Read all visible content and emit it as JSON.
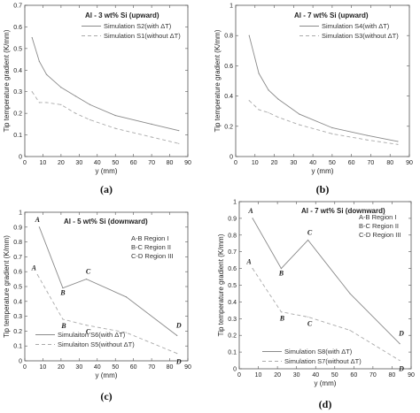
{
  "chart_data": [
    {
      "type": "line",
      "panel_label": "(a)",
      "title": "Al - 3 wt% Si (upward)",
      "xlabel": "y (mm)",
      "ylabel": "Tip temperature gradient (K/mm)",
      "xlim": [
        0,
        90
      ],
      "ylim": [
        0,
        0.7
      ],
      "xticks": [
        "0",
        "10",
        "20",
        "30",
        "40",
        "50",
        "60",
        "70",
        "80",
        "90"
      ],
      "yticks": [
        "0",
        "0.1",
        "0.2",
        "0.3",
        "0.4",
        "0.5",
        "0.6",
        "0.7"
      ],
      "legend_position": "top-right",
      "series": [
        {
          "name": "Simulation S2(with ΔT)",
          "style": "solid",
          "x": [
            4,
            8,
            12,
            20,
            28,
            36,
            50,
            70,
            85
          ],
          "y": [
            0.55,
            0.44,
            0.38,
            0.32,
            0.28,
            0.24,
            0.19,
            0.15,
            0.12
          ]
        },
        {
          "name": "Simulation S1(without ΔT)",
          "style": "dashed",
          "x": [
            4,
            8,
            12,
            20,
            28,
            36,
            50,
            70,
            85
          ],
          "y": [
            0.3,
            0.25,
            0.25,
            0.24,
            0.2,
            0.17,
            0.13,
            0.09,
            0.06
          ]
        }
      ]
    },
    {
      "type": "line",
      "panel_label": "(b)",
      "title": "Al - 7 wt% Si (upward)",
      "xlabel": "y (mm)",
      "ylabel": "Tip temperature gradient (K/mm)",
      "xlim": [
        0,
        90
      ],
      "ylim": [
        0,
        1.0
      ],
      "xticks": [
        "0",
        "10",
        "20",
        "30",
        "40",
        "50",
        "60",
        "70",
        "80",
        "90"
      ],
      "yticks": [
        "0",
        "0.2",
        "0.4",
        "0.6",
        "0.8",
        "1"
      ],
      "legend_position": "top-right",
      "series": [
        {
          "name": "Simulation S4(with ΔT)",
          "style": "solid",
          "x": [
            7,
            12,
            17,
            22,
            33,
            50,
            68,
            84
          ],
          "y": [
            0.8,
            0.55,
            0.44,
            0.38,
            0.28,
            0.19,
            0.14,
            0.1
          ]
        },
        {
          "name": "Simulation S3(without ΔT)",
          "style": "dashed",
          "x": [
            7,
            12,
            17,
            22,
            33,
            50,
            68,
            84
          ],
          "y": [
            0.37,
            0.31,
            0.29,
            0.26,
            0.21,
            0.15,
            0.11,
            0.08
          ]
        }
      ]
    },
    {
      "type": "line",
      "panel_label": "(c)",
      "title": "Al - 5 wt% Si (downward)",
      "xlabel": "y (mm)",
      "ylabel": "Tip temperature gradient (K/mm)",
      "xlim": [
        0,
        90
      ],
      "ylim": [
        0,
        1.0
      ],
      "xticks": [
        "0",
        "10",
        "20",
        "30",
        "40",
        "50",
        "60",
        "70",
        "80",
        "90"
      ],
      "yticks": [
        "0",
        "0.1",
        "0.2",
        "0.3",
        "0.4",
        "0.5",
        "0.6",
        "0.7",
        "0.8",
        "0.9",
        "1"
      ],
      "legend_position": "bottom-left",
      "regions": [
        "A-B   Region I",
        "B-C   Region II",
        "C-D   Region III"
      ],
      "series": [
        {
          "name": "Simulaiton S6(with ΔT)",
          "style": "solid",
          "x": [
            8,
            21,
            34,
            56,
            84
          ],
          "y": [
            0.9,
            0.49,
            0.55,
            0.43,
            0.17
          ],
          "point_labels": [
            "A",
            "B",
            "C",
            "",
            "D"
          ]
        },
        {
          "name": "Simulaiton S5(without ΔT)",
          "style": "dashed",
          "x": [
            7,
            21,
            34,
            56,
            84
          ],
          "y": [
            0.58,
            0.28,
            0.24,
            0.19,
            0.05
          ],
          "point_labels": [
            "A",
            "B",
            "C",
            "",
            "D"
          ]
        }
      ]
    },
    {
      "type": "line",
      "panel_label": "(d)",
      "title": "Al - 7 wt% Si (downward)",
      "xlabel": "y (mm)",
      "ylabel": "Tip temperature gradient (K/mm)",
      "xlim": [
        0,
        90
      ],
      "ylim": [
        0,
        1.0
      ],
      "xticks": [
        "0",
        "10",
        "20",
        "30",
        "40",
        "50",
        "60",
        "70",
        "80",
        "90"
      ],
      "yticks": [
        "0",
        "0.1",
        "0.2",
        "0.3",
        "0.4",
        "0.5",
        "0.6",
        "0.7",
        "0.8",
        "0.9",
        "1"
      ],
      "legend_position": "bottom-left",
      "regions": [
        "A-B   Region I",
        "B-C   Region II",
        "C-D   Region III"
      ],
      "series": [
        {
          "name": "Simulation S8(with ΔT)",
          "style": "solid",
          "x": [
            7,
            22,
            36,
            58,
            84
          ],
          "y": [
            0.9,
            0.6,
            0.77,
            0.45,
            0.15
          ],
          "point_labels": [
            "A",
            "B",
            "C",
            "",
            "D"
          ]
        },
        {
          "name": "Simulation S7(without ΔT)",
          "style": "dashed",
          "x": [
            7,
            22,
            36,
            58,
            84
          ],
          "y": [
            0.6,
            0.34,
            0.31,
            0.23,
            0.05
          ],
          "point_labels": [
            "A",
            "B",
            "C",
            "",
            "D"
          ]
        }
      ]
    }
  ]
}
